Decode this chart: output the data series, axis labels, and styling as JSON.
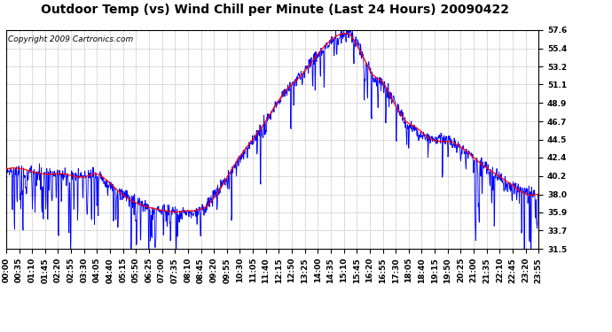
{
  "title": "Outdoor Temp (vs) Wind Chill per Minute (Last 24 Hours) 20090422",
  "copyright": "Copyright 2009 Cartronics.com",
  "y_ticks": [
    31.5,
    33.7,
    35.9,
    38.0,
    40.2,
    42.4,
    44.5,
    46.7,
    48.9,
    51.1,
    53.2,
    55.4,
    57.6
  ],
  "ylim": [
    31.5,
    57.6
  ],
  "x_tick_labels": [
    "00:00",
    "00:35",
    "01:10",
    "01:45",
    "02:20",
    "02:55",
    "03:30",
    "04:05",
    "04:40",
    "05:15",
    "05:50",
    "06:25",
    "07:00",
    "07:35",
    "08:10",
    "08:45",
    "09:20",
    "09:55",
    "10:30",
    "11:05",
    "11:40",
    "12:15",
    "12:50",
    "13:25",
    "14:00",
    "14:35",
    "15:10",
    "15:45",
    "16:20",
    "16:55",
    "17:30",
    "18:05",
    "18:40",
    "19:15",
    "19:50",
    "20:25",
    "21:00",
    "21:35",
    "22:10",
    "22:45",
    "23:20",
    "23:55"
  ],
  "outdoor_color": "#0000FF",
  "windchill_color": "#FF0000",
  "background_color": "#FFFFFF",
  "grid_color": "#AAAAAA",
  "title_fontsize": 10,
  "copyright_fontsize": 6.5,
  "tick_fontsize": 6.5,
  "minutes_per_day": 1440,
  "smooth_base_times": [
    0,
    0.083,
    0.146,
    0.167,
    0.208,
    0.271,
    0.313,
    0.354,
    0.375,
    0.458,
    0.521,
    0.583,
    0.625,
    0.646,
    0.667,
    0.688,
    0.708,
    0.75,
    0.792,
    0.833,
    0.875,
    0.938,
    0.979,
    1.0
  ],
  "smooth_base_temps": [
    41.0,
    40.5,
    40.2,
    40.5,
    38.5,
    36.2,
    36.0,
    35.8,
    36.5,
    44.0,
    50.0,
    54.5,
    57.0,
    57.5,
    55.0,
    52.0,
    51.5,
    46.5,
    44.8,
    44.5,
    42.5,
    39.5,
    38.2,
    38.0
  ]
}
